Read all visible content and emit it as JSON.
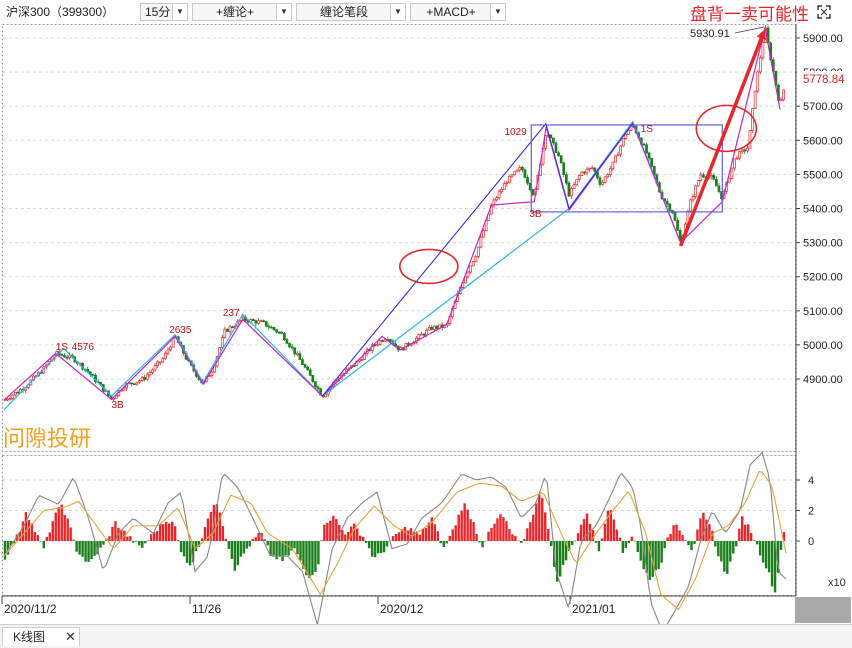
{
  "toolbar": {
    "symbol": "沪深300（399300）",
    "period": "15分",
    "btn_chanlun": "+缠论+",
    "btn_bi": "缠论笔段",
    "btn_macd": "+MACD+"
  },
  "annotation_title": "盘背一卖可能性",
  "watermark": "问隙投研",
  "tabs": {
    "kline": "K线图",
    "close": "✕"
  },
  "colors": {
    "up": "#e8262a",
    "down": "#1a7f1a",
    "bi": "#c526c5",
    "segment": "#28b6e8",
    "trend": "#3a2fe0",
    "box": "#6060e0",
    "arrow": "#e8262a"
  },
  "chart_data": [
    {
      "type": "candlestick",
      "ylim": [
        4780,
        5960
      ],
      "y_ticks": [
        "5900.00",
        "5800.00",
        "5700.00",
        "5600.00",
        "5500.00",
        "5400.00",
        "5300.00",
        "5200.00",
        "5100.00",
        "5000.00",
        "4900.00"
      ],
      "x_labels": [
        "2020/11/2",
        "11/26",
        "2020/12",
        "2021/01"
      ],
      "last_price": "5778.84",
      "high_label": "5930.91",
      "structure_labels": [
        "1S",
        "4576",
        "3B",
        "2635",
        "237",
        "1029",
        "3B",
        "1S"
      ],
      "price_path": [
        [
          0,
          4838
        ],
        [
          20,
          4875
        ],
        [
          40,
          4930
        ],
        [
          52,
          4975
        ],
        [
          70,
          4960
        ],
        [
          85,
          4920
        ],
        [
          100,
          4870
        ],
        [
          108,
          4840
        ],
        [
          120,
          4880
        ],
        [
          140,
          4900
        ],
        [
          160,
          4960
        ],
        [
          172,
          5025
        ],
        [
          185,
          4950
        ],
        [
          200,
          4885
        ],
        [
          210,
          4930
        ],
        [
          222,
          5040
        ],
        [
          240,
          5075
        ],
        [
          260,
          5065
        ],
        [
          280,
          5030
        ],
        [
          300,
          4945
        ],
        [
          320,
          4850
        ],
        [
          335,
          4900
        ],
        [
          355,
          4950
        ],
        [
          372,
          5000
        ],
        [
          385,
          5025
        ],
        [
          398,
          4985
        ],
        [
          415,
          5020
        ],
        [
          430,
          5050
        ],
        [
          445,
          5055
        ],
        [
          460,
          5180
        ],
        [
          475,
          5270
        ],
        [
          490,
          5410
        ],
        [
          505,
          5480
        ],
        [
          520,
          5520
        ],
        [
          533,
          5435
        ],
        [
          545,
          5630
        ],
        [
          558,
          5550
        ],
        [
          568,
          5440
        ],
        [
          580,
          5505
        ],
        [
          592,
          5520
        ],
        [
          600,
          5470
        ],
        [
          612,
          5530
        ],
        [
          625,
          5620
        ],
        [
          632,
          5645
        ],
        [
          645,
          5570
        ],
        [
          660,
          5440
        ],
        [
          672,
          5390
        ],
        [
          680,
          5300
        ],
        [
          690,
          5420
        ],
        [
          700,
          5500
        ],
        [
          712,
          5490
        ],
        [
          722,
          5430
        ],
        [
          735,
          5550
        ],
        [
          748,
          5580
        ],
        [
          755,
          5750
        ],
        [
          765,
          5930
        ],
        [
          770,
          5850
        ],
        [
          780,
          5700
        ],
        [
          786,
          5780
        ]
      ],
      "bi_path": [
        [
          0,
          4838
        ],
        [
          52,
          4975
        ],
        [
          108,
          4840
        ],
        [
          172,
          5025
        ],
        [
          200,
          4885
        ],
        [
          240,
          5075
        ],
        [
          320,
          4850
        ],
        [
          380,
          5025
        ],
        [
          398,
          4985
        ],
        [
          445,
          5060
        ],
        [
          490,
          5410
        ],
        [
          533,
          5420
        ],
        [
          545,
          5640
        ],
        [
          568,
          5395
        ],
        [
          632,
          5650
        ],
        [
          680,
          5300
        ],
        [
          722,
          5420
        ],
        [
          765,
          5930
        ],
        [
          780,
          5690
        ]
      ],
      "segment_path": [
        [
          0,
          4810
        ],
        [
          60,
          4990
        ],
        [
          108,
          4850
        ],
        [
          172,
          5030
        ],
        [
          200,
          4890
        ],
        [
          240,
          5090
        ],
        [
          320,
          4850
        ],
        [
          568,
          5400
        ],
        [
          632,
          5655
        ],
        [
          680,
          5300
        ]
      ],
      "trend_line": [
        [
          320,
          4850
        ],
        [
          545,
          5650
        ]
      ],
      "box": {
        "y_top": 5645,
        "y_bottom": 5390
      },
      "arrow": [
        [
          680,
          5290
        ],
        [
          765,
          5930
        ]
      ],
      "ellipses": [
        [
          427,
          5230
        ],
        [
          726,
          5635
        ]
      ]
    },
    {
      "type": "bar",
      "title": "MACD",
      "ylim": [
        -6.5,
        6
      ],
      "y_ticks": [
        "4",
        "2",
        "0"
      ],
      "unit_label": "x10",
      "hist_keypoints": [
        [
          0,
          -1.2
        ],
        [
          15,
          0.5
        ],
        [
          22,
          2
        ],
        [
          30,
          0.8
        ],
        [
          40,
          -0.5
        ],
        [
          50,
          1.5
        ],
        [
          58,
          2.4
        ],
        [
          66,
          1
        ],
        [
          72,
          -0.5
        ],
        [
          85,
          -1.5
        ],
        [
          100,
          -0.3
        ],
        [
          112,
          1.2
        ],
        [
          125,
          0.3
        ],
        [
          138,
          -0.5
        ],
        [
          150,
          0.5
        ],
        [
          160,
          1.2
        ],
        [
          170,
          1.4
        ],
        [
          178,
          -0.8
        ],
        [
          188,
          -1.6
        ],
        [
          196,
          -0.3
        ],
        [
          205,
          1.6
        ],
        [
          215,
          2.6
        ],
        [
          222,
          0.5
        ],
        [
          232,
          -1.8
        ],
        [
          245,
          -0.4
        ],
        [
          258,
          0.6
        ],
        [
          268,
          -0.9
        ],
        [
          280,
          -1.3
        ],
        [
          292,
          -0.5
        ],
        [
          305,
          -2.4
        ],
        [
          315,
          -1.8
        ],
        [
          322,
          1.2
        ],
        [
          332,
          1.6
        ],
        [
          342,
          0.5
        ],
        [
          352,
          1
        ],
        [
          362,
          0.2
        ],
        [
          372,
          -1.2
        ],
        [
          382,
          -0.6
        ],
        [
          395,
          0.5
        ],
        [
          405,
          0.9
        ],
        [
          418,
          0.4
        ],
        [
          430,
          1.5
        ],
        [
          442,
          -0.5
        ],
        [
          452,
          0.8
        ],
        [
          462,
          2.5
        ],
        [
          472,
          1.2
        ],
        [
          480,
          -0.4
        ],
        [
          490,
          0.8
        ],
        [
          500,
          1.8
        ],
        [
          510,
          0.5
        ],
        [
          520,
          -0.3
        ],
        [
          530,
          1.5
        ],
        [
          540,
          3.3
        ],
        [
          548,
          0.6
        ],
        [
          555,
          -2.8
        ],
        [
          565,
          -1.2
        ],
        [
          575,
          0.3
        ],
        [
          585,
          1.8
        ],
        [
          592,
          0.8
        ],
        [
          598,
          -0.8
        ],
        [
          608,
          2.5
        ],
        [
          615,
          1.2
        ],
        [
          622,
          -0.8
        ],
        [
          632,
          0.5
        ],
        [
          642,
          -1.8
        ],
        [
          650,
          -2.5
        ],
        [
          660,
          -1.5
        ],
        [
          668,
          0.3
        ],
        [
          675,
          1.3
        ],
        [
          682,
          0.5
        ],
        [
          692,
          -0.6
        ],
        [
          702,
          1.8
        ],
        [
          712,
          0.6
        ],
        [
          718,
          -1
        ],
        [
          726,
          -2.2
        ],
        [
          735,
          -0.5
        ],
        [
          742,
          1.5
        ],
        [
          750,
          0.8
        ],
        [
          760,
          -0.8
        ],
        [
          768,
          -2
        ],
        [
          775,
          -3.4
        ],
        [
          780,
          -1
        ],
        [
          786,
          1.5
        ]
      ],
      "dif_keypoints": [
        [
          0,
          -1
        ],
        [
          20,
          1
        ],
        [
          35,
          3
        ],
        [
          55,
          2.4
        ],
        [
          70,
          4.2
        ],
        [
          85,
          1.5
        ],
        [
          100,
          -2
        ],
        [
          115,
          0.5
        ],
        [
          130,
          1.5
        ],
        [
          150,
          0.5
        ],
        [
          165,
          2.5
        ],
        [
          178,
          3.2
        ],
        [
          192,
          -2
        ],
        [
          205,
          -1
        ],
        [
          220,
          4.5
        ],
        [
          235,
          3.5
        ],
        [
          250,
          1.5
        ],
        [
          268,
          -1
        ],
        [
          285,
          -1
        ],
        [
          300,
          -2
        ],
        [
          315,
          -5.5
        ],
        [
          330,
          -0.5
        ],
        [
          345,
          1.5
        ],
        [
          360,
          2.5
        ],
        [
          375,
          3.2
        ],
        [
          390,
          -0.5
        ],
        [
          405,
          -0.2
        ],
        [
          420,
          1.5
        ],
        [
          440,
          2.5
        ],
        [
          460,
          4.4
        ],
        [
          475,
          4
        ],
        [
          490,
          4.2
        ],
        [
          505,
          3.5
        ],
        [
          520,
          1.5
        ],
        [
          535,
          2.5
        ],
        [
          545,
          4.5
        ],
        [
          555,
          -2
        ],
        [
          568,
          -4.5
        ],
        [
          580,
          0
        ],
        [
          595,
          1
        ],
        [
          610,
          3
        ],
        [
          620,
          4.5
        ],
        [
          632,
          3.5
        ],
        [
          640,
          1
        ],
        [
          650,
          -4
        ],
        [
          662,
          -6
        ],
        [
          675,
          -4.5
        ],
        [
          688,
          -3
        ],
        [
          700,
          0
        ],
        [
          712,
          2
        ],
        [
          725,
          0.5
        ],
        [
          740,
          2
        ],
        [
          750,
          5
        ],
        [
          762,
          5.8
        ],
        [
          770,
          4
        ],
        [
          778,
          -2
        ],
        [
          786,
          -2.5
        ]
      ],
      "dea_keypoints": [
        [
          0,
          -1
        ],
        [
          20,
          0.5
        ],
        [
          40,
          2
        ],
        [
          60,
          2.2
        ],
        [
          75,
          2.6
        ],
        [
          95,
          0.8
        ],
        [
          110,
          -0.5
        ],
        [
          130,
          1
        ],
        [
          155,
          1
        ],
        [
          175,
          2.2
        ],
        [
          192,
          -0.5
        ],
        [
          210,
          0.5
        ],
        [
          228,
          3
        ],
        [
          248,
          2.5
        ],
        [
          265,
          0.5
        ],
        [
          290,
          -0.5
        ],
        [
          318,
          -3.5
        ],
        [
          335,
          -1.5
        ],
        [
          352,
          0.8
        ],
        [
          372,
          2.3
        ],
        [
          392,
          1
        ],
        [
          410,
          0.3
        ],
        [
          430,
          1.2
        ],
        [
          455,
          3.2
        ],
        [
          478,
          3.8
        ],
        [
          500,
          3.6
        ],
        [
          520,
          2.6
        ],
        [
          542,
          3.2
        ],
        [
          560,
          0.5
        ],
        [
          575,
          -1.5
        ],
        [
          592,
          0.2
        ],
        [
          612,
          2
        ],
        [
          628,
          3.3
        ],
        [
          645,
          0.5
        ],
        [
          660,
          -3.5
        ],
        [
          678,
          -4.5
        ],
        [
          695,
          -2.5
        ],
        [
          712,
          0.5
        ],
        [
          728,
          1
        ],
        [
          745,
          2.5
        ],
        [
          760,
          4.7
        ],
        [
          772,
          3.6
        ],
        [
          786,
          -0.8
        ]
      ]
    }
  ]
}
